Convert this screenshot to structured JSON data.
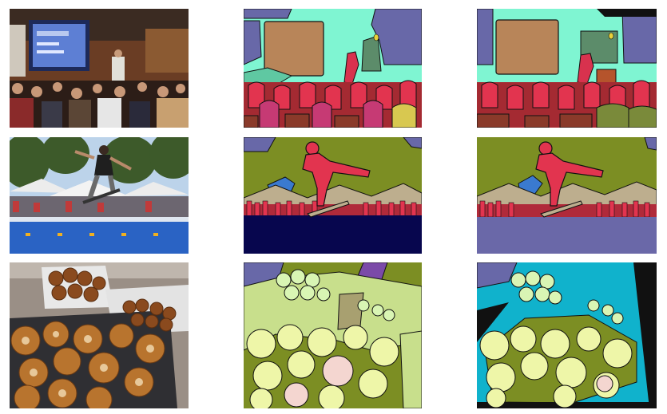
{
  "figure": {
    "rows": [
      {
        "scene": "lecture hall",
        "panels": [
          "photo",
          "segmentation-a",
          "segmentation-b"
        ]
      },
      {
        "scene": "skateboarder",
        "panels": [
          "photo",
          "segmentation-a",
          "segmentation-b"
        ]
      },
      {
        "scene": "donuts",
        "panels": [
          "photo",
          "segmentation-a",
          "segmentation-b"
        ]
      }
    ]
  },
  "colors": {
    "mint": "#7ff5d2",
    "brown_board": "#b88559",
    "slate_blue": "#6868a8",
    "crimson": "#d8324e",
    "olive": "#7c8e23",
    "navy": "#07064e",
    "tan": "#bdae8e",
    "cyan": "#10b2cc",
    "pale_yellow": "#eef6a8",
    "light_green": "#d9f5b4"
  }
}
